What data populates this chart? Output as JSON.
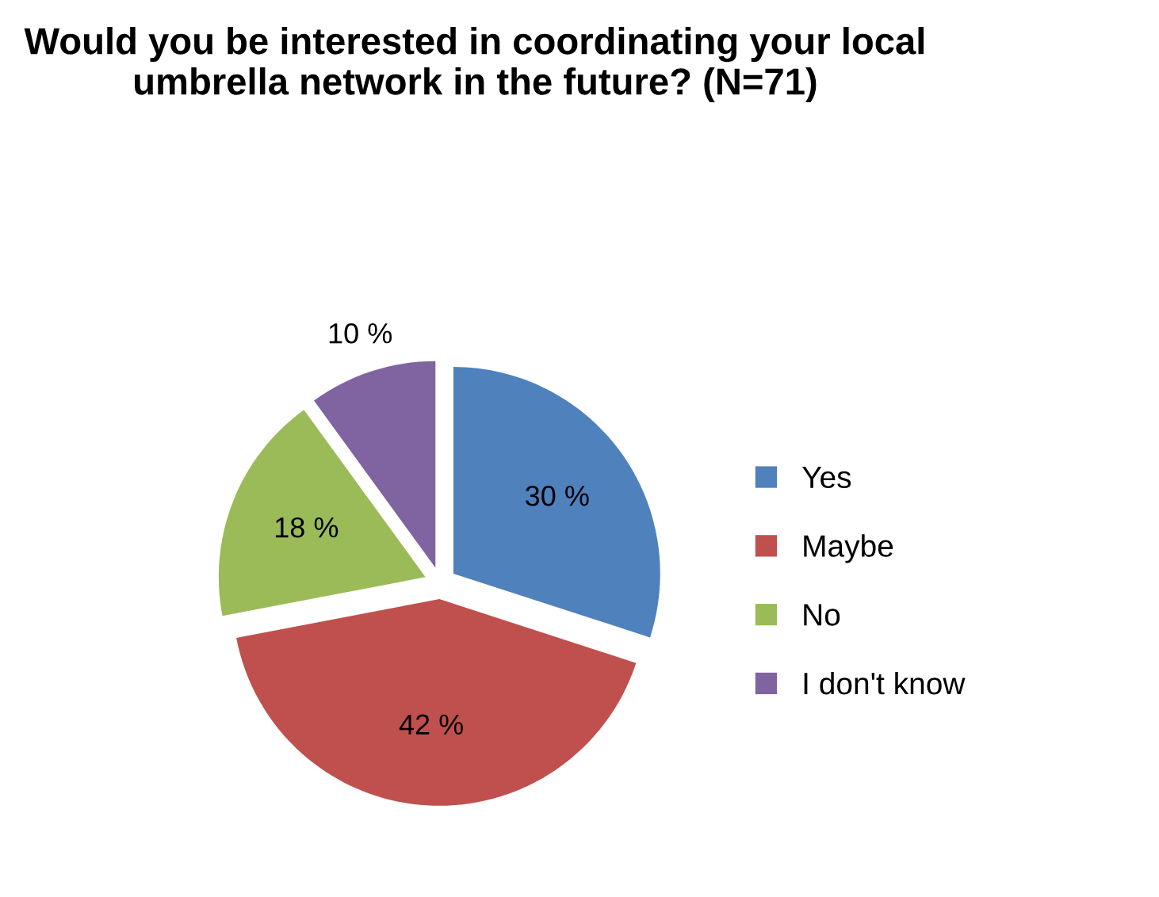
{
  "chart_data": {
    "type": "pie",
    "title": "Would you be interested in coordinating your local umbrella network in the future? (N=71)",
    "categories": [
      "Yes",
      "Maybe",
      "No",
      "I don't know"
    ],
    "values": [
      30,
      42,
      18,
      10
    ],
    "colors": [
      "#4f81bd",
      "#c0504d",
      "#9bbb59",
      "#8064a2"
    ],
    "value_labels": [
      "30 %",
      "42 %",
      "18 %",
      "10 %"
    ],
    "legend": "right"
  }
}
